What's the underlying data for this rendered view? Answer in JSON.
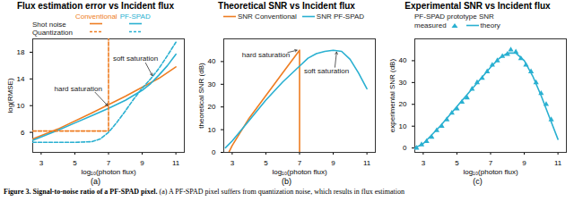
{
  "caption": {
    "bold": "Figure 3. Signal-to-noise ratio of a PF-SPAD pixel.",
    "text": "(a) A PF-SPAD pixel suffers from quantization noise, which results in flux estimation"
  },
  "chart_data": [
    {
      "type": "line",
      "title": "Flux estimation error vs Incident flux",
      "panel": "(a)",
      "x_label": "log₁₀(photon flux)",
      "y_label": "log(RMSE)",
      "xlim": [
        2.5,
        11.5
      ],
      "xticks": [
        3,
        5,
        7,
        9,
        11
      ],
      "ylim": [
        3,
        20
      ],
      "yticks": [
        6,
        10,
        14,
        18
      ],
      "grid": false,
      "legend": "top",
      "series": [
        {
          "name": "Conventional",
          "noise": "Shot noise",
          "color": "#ee7d22",
          "line_style": "solid",
          "x": [
            2.5,
            4,
            6,
            8,
            10,
            11
          ],
          "values": [
            5,
            6.5,
            8.9,
            11.4,
            14.1,
            15.8
          ]
        },
        {
          "name": "PF-SPAD",
          "noise": "Shot noise",
          "color": "#2ab0d1",
          "line_style": "solid",
          "x": [
            2.5,
            4,
            5,
            6,
            7,
            8,
            9,
            9.5,
            10,
            10.5,
            11
          ],
          "values": [
            4.8,
            6.3,
            7.4,
            8.5,
            9.6,
            10.8,
            12.3,
            13.3,
            14.6,
            16,
            17.7
          ]
        },
        {
          "name": "Conventional",
          "noise": "Quantization",
          "color": "#ee7d22",
          "line_style": "dashed",
          "x": [
            2.5,
            7,
            7
          ],
          "values": [
            6.2,
            6.2,
            20
          ]
        },
        {
          "name": "PF-SPAD",
          "noise": "Quantization",
          "color": "#2ab0d1",
          "line_style": "dashed",
          "x": [
            2.5,
            5,
            6,
            6.5,
            7,
            7.5,
            8,
            8.5,
            9,
            9.5,
            10,
            10.5,
            11
          ],
          "values": [
            4.5,
            4.5,
            4.6,
            5,
            6,
            7.5,
            9.2,
            11,
            12.6,
            14,
            15.6,
            17.5,
            19.5
          ]
        }
      ],
      "annotations": [
        {
          "text": "hard saturation",
          "x": 5.2,
          "y": 12.5,
          "arrow": [
            [
              6.2,
              12
            ],
            [
              6.95,
              10
            ]
          ]
        },
        {
          "text": "soft saturation",
          "x": 8.6,
          "y": 17,
          "arrow": [
            [
              9.2,
              16.4
            ],
            [
              9.6,
              14.5
            ]
          ]
        }
      ]
    },
    {
      "type": "line",
      "title": "Theoretical SNR vs Incident flux",
      "panel": "(b)",
      "x_label": "log₁₀(photon flux)",
      "y_label": "theoretical SNR (dB)",
      "xlim": [
        2.5,
        11.5
      ],
      "xticks": [
        3,
        5,
        7,
        9,
        11
      ],
      "ylim": [
        0,
        50
      ],
      "yticks": [
        0,
        10,
        20,
        30,
        40
      ],
      "grid": false,
      "legend": "top",
      "series": [
        {
          "name": "SNR Conventional",
          "color": "#ee7d22",
          "line_style": "solid",
          "x": [
            2.8,
            3,
            4,
            5,
            6,
            7,
            7
          ],
          "values": [
            0,
            3,
            15,
            25,
            35,
            45,
            0
          ]
        },
        {
          "name": "SNR PF-SPAD",
          "color": "#2ab0d1",
          "line_style": "solid",
          "x": [
            2.6,
            3,
            4,
            5,
            6,
            7,
            7.5,
            8,
            8.5,
            9,
            9.5,
            10,
            10.5,
            11
          ],
          "values": [
            2,
            5,
            14,
            23,
            31,
            38,
            41.5,
            43.5,
            44.5,
            45,
            44.5,
            41,
            35,
            28
          ]
        }
      ],
      "annotations": [
        {
          "text": "hard saturation",
          "x": 5.0,
          "y": 43,
          "arrow": [
            [
              6.3,
              44
            ],
            [
              6.85,
              45
            ]
          ]
        },
        {
          "text": "soft saturation",
          "x": 8.6,
          "y": 36,
          "arrow": [
            [
              9.1,
              37.5
            ],
            [
              9.2,
              44.2
            ]
          ]
        }
      ]
    },
    {
      "type": "line",
      "title": "Experimental SNR vs Incident flux",
      "panel": "(c)",
      "x_label": "log₁₀(photon flux)",
      "y_label": "experimental SNR (dB)",
      "xlim": [
        2.5,
        11.5
      ],
      "xticks": [
        3,
        5,
        7,
        9,
        11
      ],
      "ylim": [
        -2,
        50
      ],
      "yticks": [
        0,
        10,
        20,
        30,
        40
      ],
      "grid": false,
      "legend": "top",
      "legend_title": "PF-SPAD prototype SNR",
      "series": [
        {
          "name": "measured",
          "type": "scatter",
          "marker": "triangle",
          "color": "#2ab0d1",
          "x": [
            2.6,
            2.9,
            3.2,
            3.5,
            3.8,
            4.1,
            4.4,
            4.7,
            5,
            5.3,
            5.6,
            5.9,
            6.2,
            6.5,
            6.8,
            7.1,
            7.4,
            7.7,
            8,
            8.2,
            8.5,
            8.8,
            9.1,
            9.4,
            9.7,
            10,
            10.3,
            10.6
          ],
          "values": [
            0,
            1.5,
            3,
            5,
            8,
            10,
            13,
            16,
            18,
            21,
            23,
            27,
            30,
            32,
            35,
            38,
            40,
            42,
            43,
            45,
            44,
            41,
            38,
            35,
            30,
            25,
            20,
            13
          ]
        },
        {
          "name": "theory",
          "type": "line",
          "color": "#2ab0d1",
          "line_style": "solid",
          "x": [
            2.5,
            3,
            4,
            5,
            6,
            7,
            7.5,
            8,
            8.5,
            9,
            9.5,
            10,
            10.5,
            11
          ],
          "values": [
            0,
            2,
            10,
            19,
            28,
            37,
            41,
            43.5,
            43.5,
            40,
            33,
            24,
            14,
            4
          ]
        }
      ],
      "annotations": []
    }
  ]
}
